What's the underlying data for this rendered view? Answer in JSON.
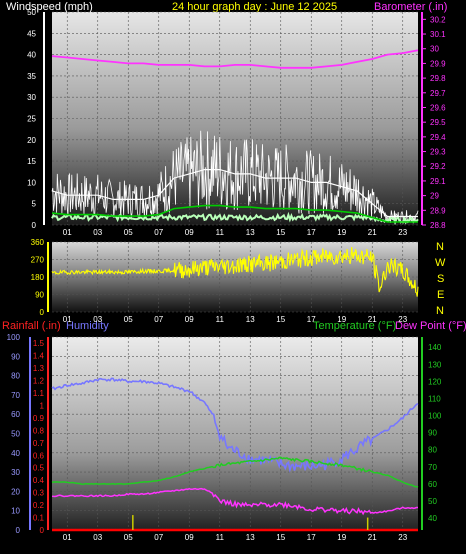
{
  "header": {
    "left_title": "Windspeed (mph)",
    "center_title": "24 hour graph day : June 12 2025",
    "right_title": "Barometer (.in)"
  },
  "bottom_header": {
    "rainfall": "Rainfall (.in)",
    "humidity": "Humidity",
    "temperature": "Temperature (°F)",
    "dewpoint": "Dew Point (°F)"
  },
  "compass": [
    "N",
    "W",
    "S",
    "E",
    "N"
  ],
  "colors": {
    "wind": "#ffffff",
    "wind_avg": "#00cc00",
    "wind_low": "#b8ffb8",
    "barometer": "#ff33ff",
    "direction": "#ffff00",
    "humidity": "#7777ff",
    "rainfall": "#ff0000",
    "temperature": "#22cc22",
    "dewpoint": "#ff33ff",
    "rain_rate": "#cccc00"
  },
  "chart_data": [
    {
      "type": "line",
      "title": "24 hour graph day : June 12 2025",
      "x_ticks": [
        "01",
        "03",
        "05",
        "07",
        "09",
        "11",
        "13",
        "15",
        "17",
        "19",
        "21",
        "23"
      ],
      "x_range": [
        0,
        24
      ],
      "grid": true,
      "left_axis": {
        "label": "Windspeed (mph)",
        "ticks": [
          0,
          5,
          10,
          15,
          20,
          25,
          30,
          35,
          40,
          45,
          50
        ],
        "range": [
          0,
          50
        ]
      },
      "right_axis": {
        "label": "Barometer (.in)",
        "ticks": [
          "28.8",
          "28.9",
          "29",
          "29.1",
          "29.2",
          "29.3",
          "29.4",
          "29.5",
          "29.6",
          "29.7",
          "29.8",
          "29.9",
          "30",
          "30.1",
          "30.2"
        ],
        "range": [
          28.8,
          30.25
        ]
      },
      "series": [
        {
          "name": "Windspeed (mph)",
          "axis": "left",
          "x": [
            0,
            1,
            2,
            3,
            4,
            5,
            6,
            7,
            8,
            9,
            10,
            11,
            12,
            13,
            14,
            15,
            16,
            17,
            18,
            19,
            20,
            21,
            22,
            23,
            24
          ],
          "values": [
            8,
            7,
            7,
            7,
            6,
            6,
            6,
            7,
            11,
            12,
            13,
            13,
            12,
            12,
            11,
            11,
            11,
            10,
            10,
            9,
            8,
            5,
            2,
            2,
            2
          ]
        },
        {
          "name": "Barometer (.in)",
          "axis": "right",
          "x": [
            0,
            1,
            2,
            3,
            4,
            5,
            6,
            7,
            8,
            9,
            10,
            11,
            12,
            13,
            14,
            15,
            16,
            17,
            18,
            19,
            20,
            21,
            22,
            23,
            24
          ],
          "values": [
            29.95,
            29.94,
            29.93,
            29.92,
            29.91,
            29.9,
            29.9,
            29.89,
            29.89,
            29.89,
            29.88,
            29.88,
            29.89,
            29.89,
            29.88,
            29.87,
            29.87,
            29.87,
            29.88,
            29.89,
            29.91,
            29.93,
            29.96,
            29.97,
            29.99
          ]
        }
      ]
    },
    {
      "type": "line",
      "x_ticks": [
        "01",
        "03",
        "05",
        "07",
        "09",
        "11",
        "13",
        "15",
        "17",
        "19",
        "21",
        "23"
      ],
      "x_range": [
        0,
        24
      ],
      "grid": true,
      "left_axis": {
        "ticks": [
          0,
          90,
          180,
          270,
          360
        ],
        "range": [
          0,
          360
        ]
      },
      "series": [
        {
          "axis": "left",
          "x": [
            0,
            1,
            2,
            3,
            4,
            5,
            6,
            7,
            8,
            9,
            10,
            11,
            12,
            13,
            14,
            15,
            16,
            17,
            18,
            19,
            20,
            21,
            21.5,
            22,
            23,
            24
          ],
          "values": [
            200,
            205,
            205,
            205,
            205,
            205,
            210,
            210,
            215,
            220,
            230,
            235,
            240,
            245,
            250,
            260,
            270,
            280,
            285,
            290,
            290,
            280,
            120,
            240,
            210,
            110
          ]
        }
      ]
    },
    {
      "type": "line",
      "x_ticks": [
        "01",
        "03",
        "05",
        "07",
        "09",
        "11",
        "13",
        "15",
        "17",
        "19",
        "21",
        "23"
      ],
      "x_range": [
        0,
        24
      ],
      "grid": true,
      "humidity_axis": {
        "label": "Humidity",
        "ticks": [
          0,
          10,
          20,
          30,
          40,
          50,
          60,
          70,
          80,
          90,
          100
        ],
        "range": [
          0,
          100
        ]
      },
      "rain_axis": {
        "label": "Rainfall (.in)",
        "ticks": [
          "0",
          "0.1",
          "0.2",
          "0.3",
          "0.4",
          "0.5",
          "0.6",
          "0.7",
          "0.8",
          "0.9",
          "1",
          "1.1",
          "1.2",
          "1.3",
          "1.4",
          "1.5"
        ],
        "range": [
          0,
          1.55
        ]
      },
      "temp_axis": {
        "label": "Temperature (°F)",
        "ticks": [
          40,
          50,
          60,
          70,
          80,
          90,
          100,
          110,
          120,
          130,
          140
        ],
        "range": [
          33,
          146
        ]
      },
      "series": [
        {
          "name": "Humidity",
          "axis": "humidity",
          "x": [
            0,
            1,
            2,
            3,
            4,
            5,
            6,
            7,
            8,
            9,
            10,
            10.5,
            11,
            11.5,
            12,
            13,
            14,
            15,
            16,
            17,
            18,
            19,
            20,
            21,
            22,
            23,
            24
          ],
          "values": [
            73,
            75,
            76,
            78,
            78,
            77,
            77,
            76,
            74,
            72,
            66,
            60,
            50,
            43,
            41,
            37,
            36,
            34,
            33,
            33,
            34,
            37,
            42,
            47,
            52,
            58,
            66
          ]
        },
        {
          "name": "Temperature (°F)",
          "axis": "temp",
          "x": [
            0,
            1,
            2,
            3,
            4,
            5,
            6,
            7,
            8,
            9,
            10,
            11,
            12,
            13,
            14,
            15,
            16,
            17,
            18,
            19,
            20,
            21,
            22,
            23,
            24
          ],
          "values": [
            61,
            61,
            60,
            60,
            60,
            60,
            61,
            62,
            64,
            67,
            69,
            71,
            72,
            73,
            74,
            75,
            74,
            73,
            72,
            71,
            69,
            67,
            65,
            61,
            58
          ]
        },
        {
          "name": "Dew Point (°F)",
          "axis": "temp",
          "x": [
            0,
            1,
            2,
            3,
            4,
            5,
            6,
            7,
            8,
            9,
            10,
            10.5,
            11,
            12,
            13,
            14,
            15,
            16,
            17,
            18,
            19,
            20,
            21,
            22,
            23,
            24
          ],
          "values": [
            53,
            53,
            53,
            53,
            53,
            54,
            54,
            55,
            56,
            57,
            57,
            55,
            50,
            48,
            47,
            48,
            48,
            47,
            45,
            45,
            44,
            44,
            43,
            44,
            46,
            46
          ]
        },
        {
          "name": "Rainfall (.in)",
          "axis": "rain",
          "x": [
            0,
            24
          ],
          "values": [
            0,
            0
          ]
        }
      ],
      "rain_rate_marks": [
        {
          "x": 5.3,
          "value": 0.12
        },
        {
          "x": 20.7,
          "value": 0.1
        }
      ]
    }
  ]
}
